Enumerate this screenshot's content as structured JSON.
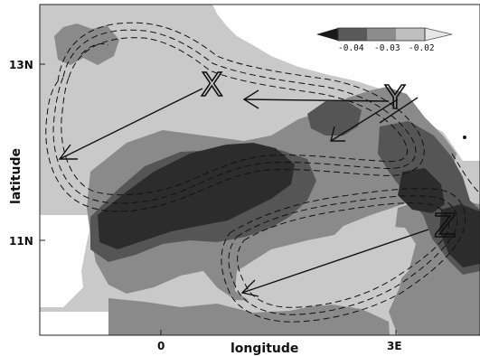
{
  "map": {
    "x_axis_label": "longitude",
    "y_axis_label": "latitude",
    "x_ticks": [
      "0",
      "3E"
    ],
    "y_ticks": [
      "13N",
      "11N"
    ],
    "point_labels": [
      "X",
      "Y",
      "Z"
    ]
  },
  "colorbar": {
    "tick_labels": [
      "-0.04",
      "-0.03",
      "-0.02"
    ],
    "shades": [
      "#1a1a1a",
      "#595959",
      "#8c8c8c",
      "#bfbfbf",
      "#e6e6e6"
    ]
  },
  "colors": {
    "darkest": "#2c2c2c",
    "dark": "#555555",
    "mid": "#8a8a8a",
    "light": "#c9c9c9",
    "background": "#ffffff",
    "line": "#111111"
  }
}
